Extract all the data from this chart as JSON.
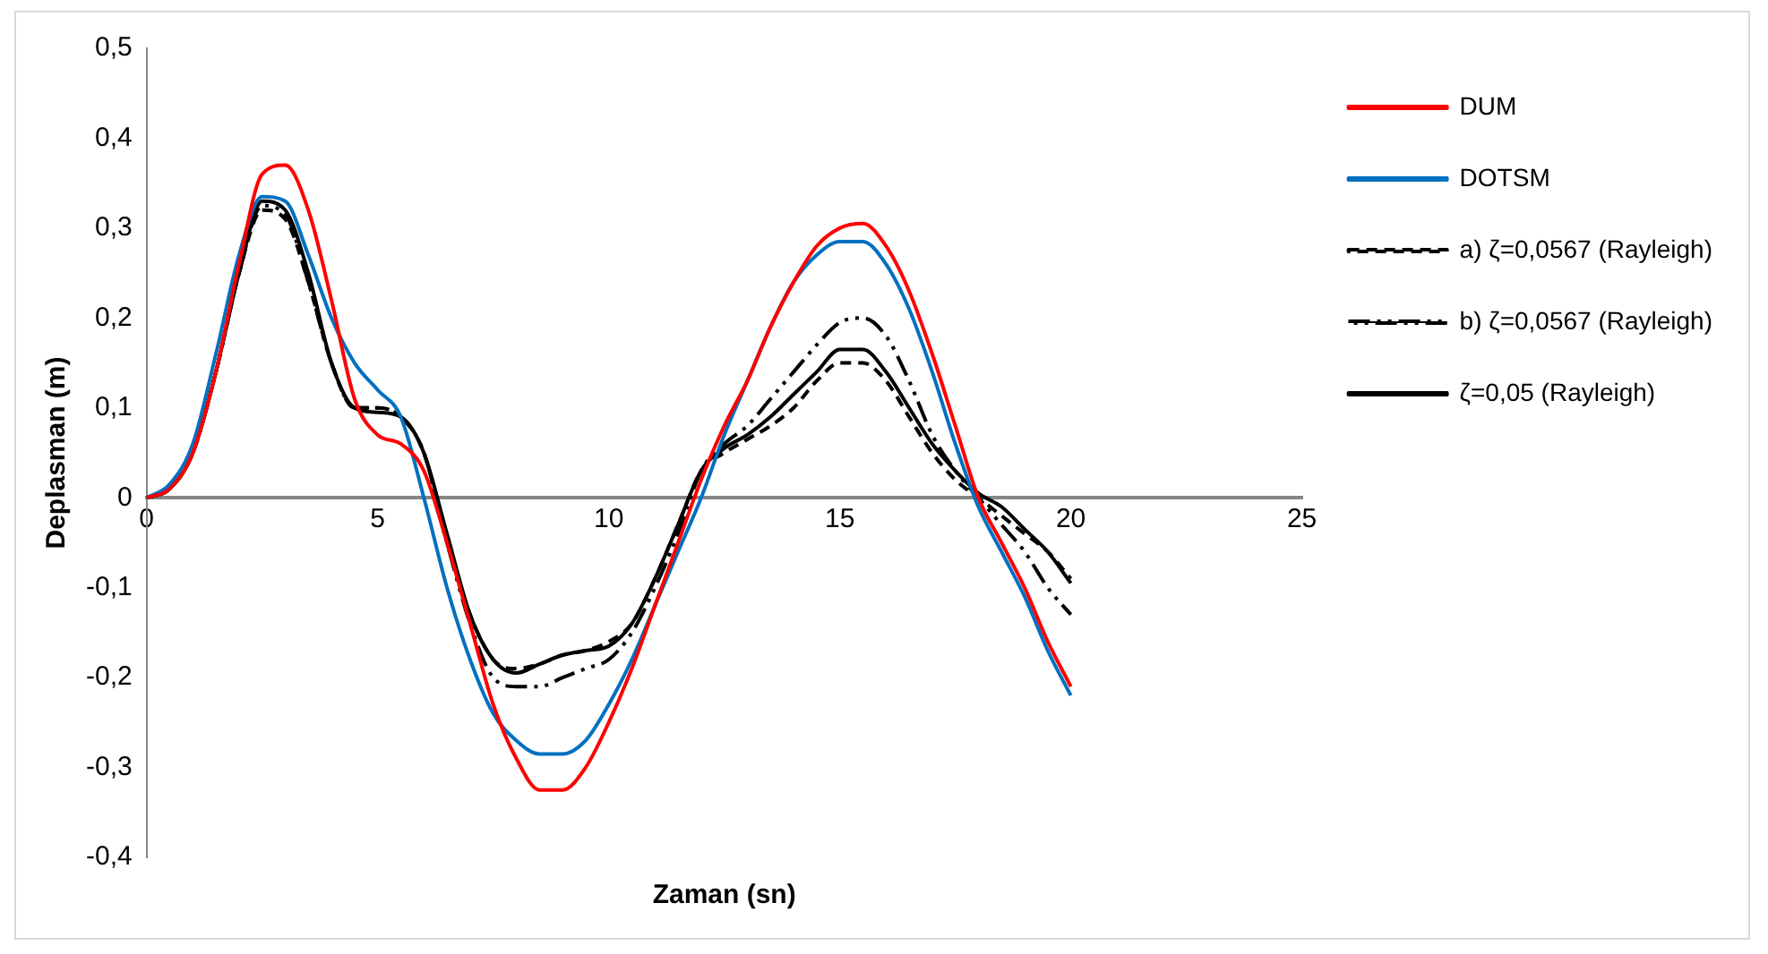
{
  "chart_data": {
    "type": "line",
    "xlabel": "Zaman (sn)",
    "ylabel": "Deplasman (m)",
    "x": [
      0,
      0.5,
      1,
      1.5,
      2,
      2.5,
      3,
      3.5,
      4,
      4.5,
      5,
      5.5,
      6,
      6.5,
      7,
      7.5,
      8,
      8.5,
      9,
      9.5,
      10,
      10.5,
      11,
      11.5,
      12,
      12.5,
      13,
      13.5,
      14,
      14.5,
      15,
      15.5,
      16,
      16.5,
      17,
      17.5,
      18,
      18.5,
      19,
      19.5,
      20
    ],
    "series": [
      {
        "name": "DUM",
        "color": "#ff0000",
        "line_style": "solid",
        "values": [
          0,
          0.01,
          0.05,
          0.14,
          0.26,
          0.36,
          0.37,
          0.32,
          0.22,
          0.11,
          0.07,
          0.06,
          0.03,
          -0.05,
          -0.14,
          -0.23,
          -0.29,
          -0.325,
          -0.325,
          -0.3,
          -0.25,
          -0.19,
          -0.12,
          -0.05,
          0.02,
          0.08,
          0.13,
          0.19,
          0.24,
          0.28,
          0.3,
          0.305,
          0.28,
          0.23,
          0.16,
          0.08,
          0,
          -0.05,
          -0.1,
          -0.16,
          -0.21
        ]
      },
      {
        "name": "DOTSM",
        "color": "#0070c0",
        "line_style": "solid",
        "values": [
          0,
          0.015,
          0.06,
          0.16,
          0.27,
          0.335,
          0.33,
          0.27,
          0.2,
          0.15,
          0.12,
          0.09,
          0,
          -0.1,
          -0.18,
          -0.24,
          -0.27,
          -0.285,
          -0.285,
          -0.27,
          -0.23,
          -0.18,
          -0.12,
          -0.06,
          0,
          0.07,
          0.13,
          0.19,
          0.24,
          0.27,
          0.285,
          0.285,
          0.26,
          0.21,
          0.14,
          0.06,
          -0.01,
          -0.06,
          -0.11,
          -0.17,
          -0.22
        ]
      },
      {
        "name": "a) ζ=0,0567 (Rayleigh)",
        "color": "#000000",
        "line_style": "dashed",
        "values": [
          0,
          0.01,
          0.05,
          0.14,
          0.25,
          0.32,
          0.31,
          0.24,
          0.15,
          0.1,
          0.1,
          0.09,
          0.05,
          -0.05,
          -0.13,
          -0.18,
          -0.19,
          -0.185,
          -0.175,
          -0.17,
          -0.16,
          -0.14,
          -0.09,
          -0.03,
          0.03,
          0.05,
          0.065,
          0.08,
          0.1,
          0.13,
          0.15,
          0.15,
          0.13,
          0.09,
          0.05,
          0.02,
          0,
          -0.02,
          -0.04,
          -0.06,
          -0.09
        ]
      },
      {
        "name": "b) ζ=0,0567 (Rayleigh)",
        "color": "#000000",
        "line_style": "dashdot",
        "values": [
          0,
          0.01,
          0.05,
          0.14,
          0.25,
          0.325,
          0.315,
          0.24,
          0.15,
          0.1,
          0.1,
          0.09,
          0.05,
          -0.05,
          -0.14,
          -0.2,
          -0.21,
          -0.21,
          -0.2,
          -0.19,
          -0.18,
          -0.15,
          -0.1,
          -0.04,
          0.03,
          0.06,
          0.08,
          0.11,
          0.14,
          0.17,
          0.195,
          0.2,
          0.18,
          0.13,
          0.07,
          0.03,
          0,
          -0.03,
          -0.06,
          -0.1,
          -0.13
        ]
      },
      {
        "name": "ζ=0,05 (Rayleigh)",
        "color": "#000000",
        "line_style": "solid",
        "values": [
          0,
          0.01,
          0.05,
          0.14,
          0.25,
          0.33,
          0.32,
          0.25,
          0.15,
          0.1,
          0.095,
          0.09,
          0.05,
          -0.04,
          -0.13,
          -0.18,
          -0.195,
          -0.185,
          -0.175,
          -0.17,
          -0.165,
          -0.14,
          -0.09,
          -0.03,
          0.03,
          0.055,
          0.07,
          0.09,
          0.115,
          0.14,
          0.165,
          0.165,
          0.14,
          0.1,
          0.06,
          0.03,
          0.005,
          -0.01,
          -0.035,
          -0.06,
          -0.095
        ]
      }
    ],
    "xlim": [
      0,
      25
    ],
    "xticks": [
      0,
      5,
      10,
      15,
      20,
      25
    ],
    "ylim": [
      -0.4,
      0.5
    ],
    "yticks": [
      {
        "value": -0.4,
        "label": "-0,4"
      },
      {
        "value": -0.3,
        "label": "-0,3"
      },
      {
        "value": -0.2,
        "label": "-0,2"
      },
      {
        "value": -0.1,
        "label": "-0,1"
      },
      0,
      {
        "value": 0.1,
        "label": "0,1"
      },
      {
        "value": 0.2,
        "label": "0,2"
      },
      {
        "value": 0.3,
        "label": "0,3"
      },
      {
        "value": 0.4,
        "label": "0,4"
      },
      {
        "value": 0.5,
        "label": "0,5"
      }
    ],
    "grid": false,
    "legend": "right",
    "marker": "none"
  }
}
